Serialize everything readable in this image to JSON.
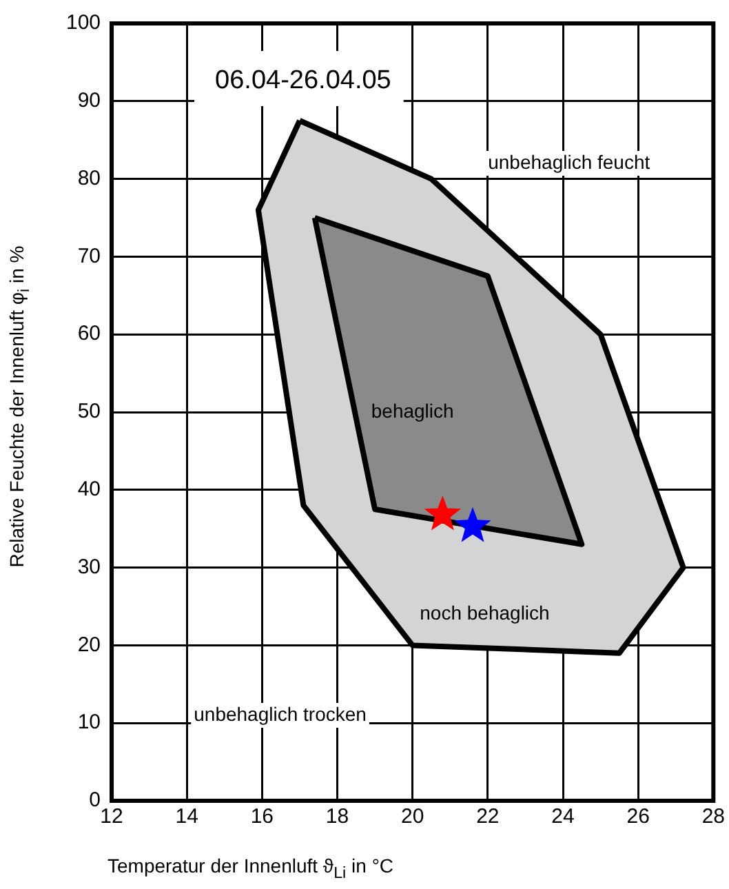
{
  "chart_data": {
    "type": "area",
    "title": "06.04-26.04.05",
    "xlabel": "Temperatur der Innenluft ϑ$_{Li}$ in °C",
    "ylabel": "Relative Feuchte der Innenluft φ$_{i}$ in %",
    "xlim": [
      12,
      28
    ],
    "xticks": [
      12,
      14,
      16,
      18,
      20,
      22,
      24,
      26,
      28
    ],
    "ylim": [
      0,
      100
    ],
    "yticks": [
      0,
      10,
      20,
      30,
      40,
      50,
      60,
      70,
      80,
      90,
      100
    ],
    "grid": true,
    "legend": false,
    "series": [
      {
        "type": "area",
        "color": "#d4d4d4",
        "x": [
          17,
          20.5,
          25,
          27.2,
          25.5,
          20,
          17.1,
          15.9,
          17
        ],
        "values": [
          87.5,
          80,
          60,
          30,
          19,
          20,
          38,
          76,
          87.5
        ]
      },
      {
        "type": "area",
        "color": "#8a8a8a",
        "x": [
          17.4,
          22,
          24.5,
          19,
          17.4
        ],
        "values": [
          75,
          67.5,
          33,
          37.5,
          75
        ]
      },
      {
        "type": "scatter",
        "marker": "star",
        "colors": [
          "#ff0000",
          "#0000ff"
        ],
        "x": [
          20.8,
          21.6
        ],
        "values": [
          36.8,
          35.3
        ]
      }
    ],
    "annotations": [
      "unbehaglich feucht",
      "behaglich",
      "noch behaglich",
      "unbehaglich trocken"
    ]
  }
}
